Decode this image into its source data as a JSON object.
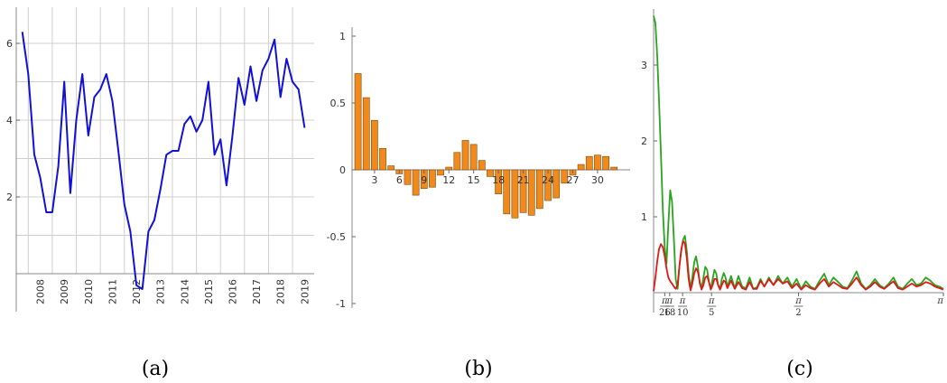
{
  "chart_data": [
    {
      "type": "line",
      "caption": "(a)",
      "x_ticks": [
        "2008",
        "2009",
        "2010",
        "2011",
        "2012",
        "2013",
        "2014",
        "2015",
        "2016",
        "2017",
        "2018",
        "2019"
      ],
      "y_ticks": [
        "2",
        "4",
        "6"
      ],
      "xlim": [
        2007.5,
        2019.9
      ],
      "ylim": [
        -0.7,
        6.5
      ],
      "grid": true,
      "color": "#1010d8",
      "x": [
        2007.75,
        2008.0,
        2008.25,
        2008.5,
        2008.75,
        2009.0,
        2009.25,
        2009.5,
        2009.75,
        2010.0,
        2010.25,
        2010.5,
        2010.75,
        2011.0,
        2011.25,
        2011.5,
        2011.75,
        2012.0,
        2012.25,
        2012.5,
        2012.75,
        2013.0,
        2013.25,
        2013.5,
        2013.75,
        2014.0,
        2014.25,
        2014.5,
        2014.75,
        2015.0,
        2015.25,
        2015.5,
        2015.75,
        2016.0,
        2016.25,
        2016.5,
        2016.75,
        2017.0,
        2017.25,
        2017.5,
        2017.75,
        2018.0,
        2018.25,
        2018.5,
        2018.75,
        2019.0,
        2019.25,
        2019.5
      ],
      "values": [
        6.3,
        5.2,
        3.1,
        2.5,
        1.6,
        1.6,
        2.8,
        5.0,
        2.1,
        4.0,
        5.2,
        3.6,
        4.6,
        4.8,
        5.2,
        4.5,
        3.2,
        1.8,
        1.1,
        -0.3,
        -0.4,
        1.1,
        1.4,
        2.2,
        3.1,
        3.2,
        3.2,
        3.9,
        4.1,
        3.7,
        4.0,
        5.0,
        3.1,
        3.5,
        2.3,
        3.6,
        5.1,
        4.4,
        5.4,
        4.5,
        5.3,
        5.6,
        6.1,
        4.6,
        5.6,
        5.0,
        4.8,
        3.8
      ]
    },
    {
      "type": "bar",
      "caption": "(b)",
      "x_ticks": [
        "3",
        "6",
        "9",
        "12",
        "15",
        "18",
        "21",
        "24",
        "27",
        "30"
      ],
      "y_ticks": [
        "1",
        "0.5",
        "0",
        "-0.5",
        "-1"
      ],
      "ylim": [
        -1.1,
        1.1
      ],
      "color": "#f08a1c",
      "values": [
        0.72,
        0.54,
        0.37,
        0.16,
        0.03,
        -0.03,
        -0.11,
        -0.19,
        -0.14,
        -0.13,
        -0.04,
        0.02,
        0.13,
        0.22,
        0.19,
        0.07,
        -0.05,
        -0.18,
        -0.33,
        -0.36,
        -0.32,
        -0.34,
        -0.29,
        -0.23,
        -0.21,
        -0.1,
        -0.04,
        0.04,
        0.1,
        0.11,
        0.1,
        0.02
      ]
    },
    {
      "type": "line",
      "caption": "(c)",
      "y_ticks": [
        "1",
        "2",
        "3"
      ],
      "x_ticks": [
        {
          "num": "π",
          "den": "26"
        },
        {
          "num": "π",
          "den": "18"
        },
        {
          "num": "π",
          "den": "10"
        },
        {
          "num": "π",
          "den": "5"
        },
        {
          "num": "π",
          "den": "2"
        },
        {
          "num": "π",
          "den": ""
        }
      ],
      "xlim": [
        0,
        3.1416
      ],
      "ylim": [
        0,
        3.8
      ],
      "series": [
        {
          "color": "#2aa31e",
          "x": [
            0,
            0.02,
            0.04,
            0.06,
            0.08,
            0.1,
            0.12,
            0.14,
            0.16,
            0.18,
            0.2,
            0.22,
            0.24,
            0.26,
            0.28,
            0.3,
            0.32,
            0.34,
            0.36,
            0.38,
            0.4,
            0.42,
            0.44,
            0.46,
            0.48,
            0.5,
            0.52,
            0.54,
            0.56,
            0.58,
            0.6,
            0.62,
            0.64,
            0.66,
            0.68,
            0.7,
            0.72,
            0.74,
            0.76,
            0.78,
            0.8,
            0.84,
            0.88,
            0.92,
            0.96,
            1.0,
            1.04,
            1.08,
            1.12,
            1.16,
            1.2,
            1.25,
            1.3,
            1.35,
            1.4,
            1.45,
            1.5,
            1.55,
            1.6,
            1.65,
            1.7,
            1.75,
            1.8,
            1.85,
            1.9,
            1.95,
            2.0,
            2.05,
            2.1,
            2.15,
            2.2,
            2.25,
            2.3,
            2.35,
            2.4,
            2.45,
            2.5,
            2.55,
            2.6,
            2.65,
            2.7,
            2.75,
            2.8,
            2.85,
            2.9,
            2.95,
            3.0,
            3.05,
            3.1,
            3.1416
          ],
          "values": [
            3.65,
            3.55,
            3.1,
            2.5,
            1.8,
            1.1,
            0.6,
            0.38,
            0.9,
            1.35,
            1.2,
            0.7,
            0.18,
            0.05,
            0.35,
            0.55,
            0.7,
            0.75,
            0.55,
            0.25,
            0.05,
            0.2,
            0.4,
            0.48,
            0.35,
            0.12,
            0.05,
            0.2,
            0.34,
            0.3,
            0.15,
            0.05,
            0.18,
            0.3,
            0.25,
            0.1,
            0.05,
            0.18,
            0.26,
            0.2,
            0.08,
            0.22,
            0.06,
            0.22,
            0.08,
            0.06,
            0.2,
            0.05,
            0.07,
            0.18,
            0.08,
            0.2,
            0.1,
            0.22,
            0.12,
            0.2,
            0.08,
            0.18,
            0.05,
            0.15,
            0.08,
            0.05,
            0.16,
            0.25,
            0.1,
            0.2,
            0.14,
            0.08,
            0.06,
            0.16,
            0.28,
            0.12,
            0.05,
            0.1,
            0.18,
            0.1,
            0.06,
            0.12,
            0.2,
            0.08,
            0.05,
            0.12,
            0.18,
            0.1,
            0.12,
            0.2,
            0.16,
            0.1,
            0.08,
            0.05
          ]
        },
        {
          "color": "#e01818",
          "x": [
            0,
            0.02,
            0.04,
            0.06,
            0.08,
            0.1,
            0.12,
            0.14,
            0.16,
            0.18,
            0.2,
            0.22,
            0.24,
            0.26,
            0.28,
            0.3,
            0.32,
            0.34,
            0.36,
            0.38,
            0.4,
            0.42,
            0.44,
            0.46,
            0.48,
            0.5,
            0.52,
            0.54,
            0.56,
            0.58,
            0.6,
            0.62,
            0.64,
            0.66,
            0.68,
            0.7,
            0.72,
            0.74,
            0.76,
            0.78,
            0.8,
            0.84,
            0.88,
            0.92,
            0.96,
            1.0,
            1.04,
            1.08,
            1.12,
            1.16,
            1.2,
            1.25,
            1.3,
            1.35,
            1.4,
            1.45,
            1.5,
            1.55,
            1.6,
            1.65,
            1.7,
            1.75,
            1.8,
            1.85,
            1.9,
            1.95,
            2.0,
            2.05,
            2.1,
            2.15,
            2.2,
            2.25,
            2.3,
            2.35,
            2.4,
            2.45,
            2.5,
            2.55,
            2.6,
            2.65,
            2.7,
            2.75,
            2.8,
            2.85,
            2.9,
            2.95,
            3.0,
            3.05,
            3.1,
            3.1416
          ],
          "values": [
            0.02,
            0.2,
            0.42,
            0.58,
            0.64,
            0.6,
            0.48,
            0.32,
            0.2,
            0.15,
            0.12,
            0.08,
            0.05,
            0.1,
            0.35,
            0.58,
            0.68,
            0.65,
            0.45,
            0.18,
            0.03,
            0.12,
            0.25,
            0.32,
            0.28,
            0.15,
            0.04,
            0.1,
            0.2,
            0.22,
            0.14,
            0.04,
            0.1,
            0.18,
            0.18,
            0.1,
            0.04,
            0.1,
            0.16,
            0.14,
            0.06,
            0.16,
            0.05,
            0.14,
            0.06,
            0.04,
            0.14,
            0.05,
            0.05,
            0.16,
            0.08,
            0.18,
            0.1,
            0.18,
            0.12,
            0.15,
            0.06,
            0.12,
            0.04,
            0.1,
            0.06,
            0.04,
            0.12,
            0.18,
            0.08,
            0.14,
            0.1,
            0.06,
            0.05,
            0.12,
            0.2,
            0.1,
            0.04,
            0.08,
            0.14,
            0.08,
            0.05,
            0.1,
            0.15,
            0.06,
            0.04,
            0.08,
            0.12,
            0.08,
            0.1,
            0.14,
            0.12,
            0.08,
            0.06,
            0.04
          ]
        }
      ]
    }
  ]
}
